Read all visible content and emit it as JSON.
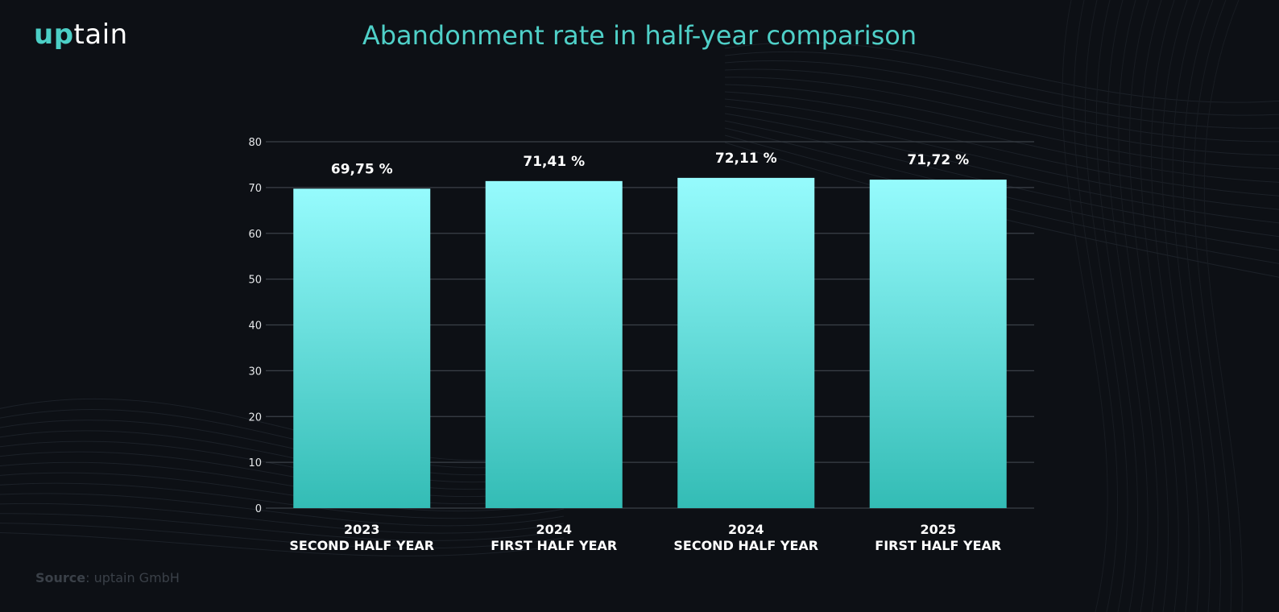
{
  "logo": {
    "part1": "up",
    "part2": "tain"
  },
  "source": {
    "label": "Source",
    "separator": ": ",
    "value": "uptain GmbH"
  },
  "colors": {
    "background": "#0d1015",
    "title": "#4fd0c8",
    "bar_top": "#96fbfd",
    "bar_bottom": "#33bcb5",
    "grid": "#3b4048",
    "axis_text": "#e6e8ea",
    "label_text": "#ffffff"
  },
  "chart_data": {
    "type": "bar",
    "title": "Abandonment rate in half-year comparison",
    "categories": [
      [
        "2023",
        "SECOND HALF YEAR"
      ],
      [
        "2024",
        "FIRST HALF YEAR"
      ],
      [
        "2024",
        "SECOND HALF YEAR"
      ],
      [
        "2025",
        "FIRST HALF YEAR"
      ]
    ],
    "values": [
      69.75,
      71.41,
      72.11,
      71.72
    ],
    "value_labels": [
      "69,75 %",
      "71,41 %",
      "72,11 %",
      "71,72 %"
    ],
    "ylim": [
      0,
      80
    ],
    "yticks": [
      0,
      10,
      20,
      30,
      40,
      50,
      60,
      70,
      80
    ],
    "grid": true,
    "legend": "none"
  }
}
